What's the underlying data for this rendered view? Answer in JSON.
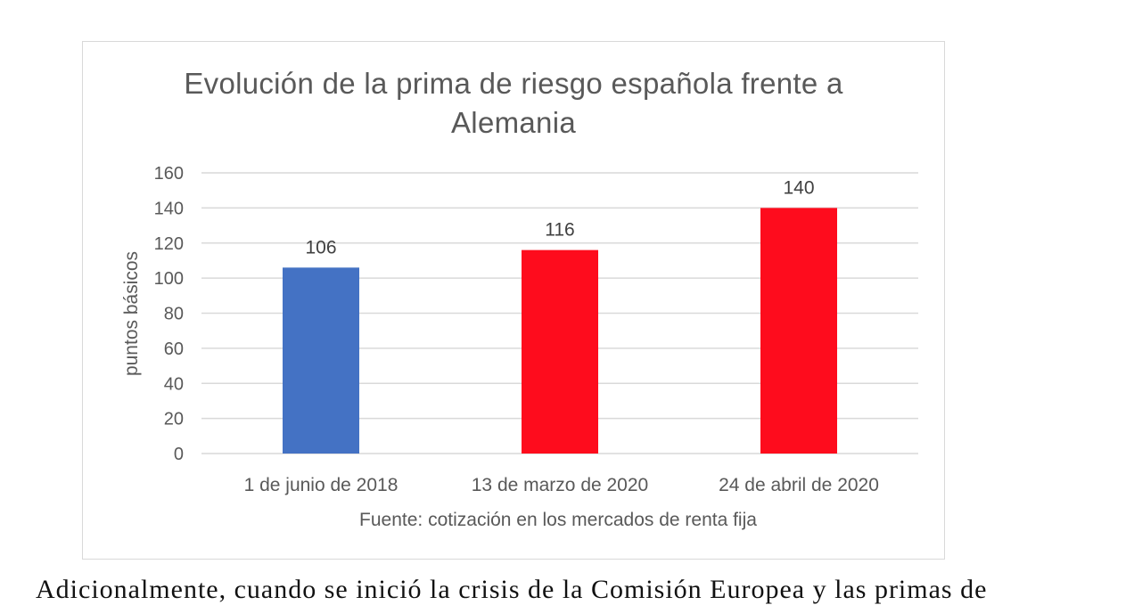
{
  "chart_data": {
    "type": "bar",
    "title_lines": [
      "Evolución de la prima de riesgo española frente a",
      "Alemania"
    ],
    "categories": [
      "1 de junio de 2018",
      "13 de marzo de 2020",
      "24 de abril de 2020"
    ],
    "values": [
      106,
      116,
      140
    ],
    "data_labels": [
      "106",
      "116",
      "140"
    ],
    "bar_colors": [
      "#4472c4",
      "#fe0c1d",
      "#fe0c1d"
    ],
    "ylabel": "puntos básicos",
    "xlabel": "Fuente: cotización en los mercados de renta fija",
    "ylim": [
      0,
      160
    ],
    "yticks": [
      0,
      20,
      40,
      60,
      80,
      100,
      120,
      140,
      160
    ],
    "grid": true,
    "legend": "none"
  },
  "body_text": "Adicionalmente, cuando se inició la crisis de la Comisión Europea y las primas de"
}
